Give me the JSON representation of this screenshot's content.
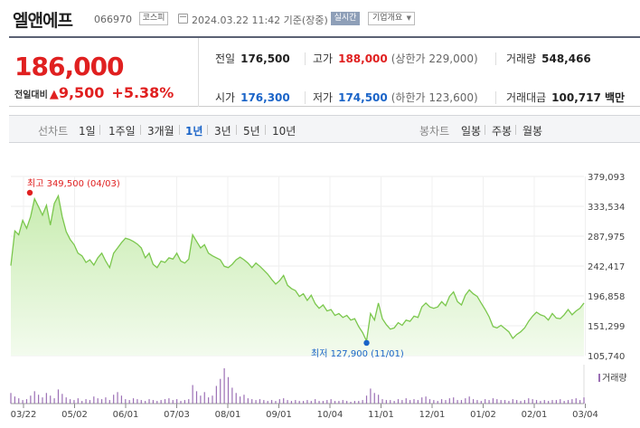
{
  "header": {
    "name": "엘앤에프",
    "code": "066970",
    "market": "코스피",
    "timestamp": "2024.03.22 11:42 기준(장중)",
    "realtime": "실시간",
    "company_info": "기업개요"
  },
  "summary": {
    "price": "186,000",
    "change_label": "전일대비",
    "change_arrow": "▲",
    "change": "9,500",
    "change_pct": "+5.38%",
    "prev_label": "전일",
    "prev": "176,500",
    "high_label": "고가",
    "high": "188,000",
    "upper_limit": "(상한가 229,000)",
    "volume_label": "거래량",
    "volume": "548,466",
    "open_label": "시가",
    "open": "176,300",
    "low_label": "저가",
    "low": "174,500",
    "lower_limit": "(하한가 123,600)",
    "amount_label": "거래대금",
    "amount": "100,717 백만"
  },
  "periods": {
    "line_label": "선차트",
    "line_tabs": [
      "1일",
      "1주일",
      "3개월",
      "1년",
      "3년",
      "5년",
      "10년"
    ],
    "active": "1년",
    "candle_label": "봉차트",
    "candle_tabs": [
      "일봉",
      "주봉",
      "월봉"
    ]
  },
  "chart_data": {
    "type": "area",
    "y_ticks": [
      "379,093",
      "333,534",
      "287,975",
      "242,417",
      "196,858",
      "151,299",
      "105,740"
    ],
    "ylim": [
      105740,
      379093
    ],
    "x_ticks": [
      "03/22",
      "05/02",
      "06/01",
      "07/03",
      "08/01",
      "09/01",
      "10/04",
      "11/01",
      "12/01",
      "01/02",
      "02/01",
      "03/04"
    ],
    "high_label": "최고 349,500 (04/03)",
    "low_label": "최저 127,900 (11/01)",
    "volume_legend": "거래량",
    "colors": {
      "line": "#7bc74d",
      "fill_top": "#c8ecb0",
      "fill_bottom": "#f3fbee",
      "volume": "#9b6fb5",
      "high_marker": "#e02020",
      "low_marker": "#1a64c8"
    },
    "series": [
      {
        "values": [
          243000,
          296000,
          290000,
          312000,
          300000,
          318000,
          345000,
          333000,
          320000,
          335000,
          305000,
          338000,
          349500,
          318000,
          295000,
          283000,
          275000,
          262000,
          258000,
          248000,
          252000,
          244000,
          255000,
          262000,
          250000,
          240000,
          262000,
          270000,
          278000,
          285000,
          283000,
          280000,
          276000,
          270000,
          255000,
          262000,
          245000,
          240000,
          250000,
          248000,
          255000,
          253000,
          262000,
          250000,
          247000,
          253000,
          290000,
          280000,
          270000,
          275000,
          262000,
          258000,
          255000,
          252000,
          242000,
          240000,
          245000,
          252000,
          256000,
          252000,
          247000,
          240000,
          247000,
          242000,
          236000,
          230000,
          222000,
          215000,
          220000,
          228000,
          213000,
          208000,
          205000,
          196000,
          200000,
          190000,
          198000,
          185000,
          178000,
          183000,
          174000,
          176000,
          167000,
          170000,
          164000,
          167000,
          160000,
          162000,
          150000,
          141000,
          127900,
          170000,
          160000,
          186000,
          162000,
          153000,
          146000,
          148000,
          156000,
          152000,
          160000,
          158000,
          166000,
          164000,
          180000,
          186000,
          180000,
          178000,
          180000,
          188000,
          182000,
          196000,
          203000,
          188000,
          183000,
          198000,
          206000,
          200000,
          196000,
          186000,
          176000,
          165000,
          150000,
          148000,
          152000,
          147000,
          142000,
          132000,
          138000,
          142000,
          148000,
          158000,
          166000,
          172000,
          168000,
          166000,
          160000,
          170000,
          163000,
          162000,
          168000,
          176000,
          168000,
          174000,
          178000,
          186000
        ]
      }
    ],
    "high_index": 12,
    "low_index": 90,
    "volume": [
      12,
      8,
      6,
      4,
      5,
      9,
      14,
      10,
      7,
      12,
      9,
      6,
      16,
      11,
      7,
      5,
      4,
      6,
      3,
      5,
      4,
      8,
      6,
      5,
      7,
      4,
      10,
      13,
      9,
      5,
      4,
      6,
      5,
      4,
      3,
      5,
      4,
      3,
      4,
      5,
      6,
      4,
      5,
      3,
      4,
      5,
      21,
      14,
      9,
      13,
      7,
      9,
      20,
      28,
      40,
      30,
      18,
      12,
      8,
      10,
      6,
      5,
      4,
      5,
      4,
      3,
      4,
      3,
      5,
      6,
      4,
      3,
      4,
      3,
      3,
      4,
      3,
      5,
      3,
      3,
      4,
      5,
      3,
      3,
      4,
      3,
      2,
      3,
      3,
      4,
      9,
      17,
      12,
      10,
      5,
      4,
      4,
      3,
      5,
      4,
      6,
      4,
      5,
      4,
      7,
      8,
      5,
      4,
      3,
      5,
      4,
      6,
      7,
      4,
      4,
      6,
      8,
      5,
      4,
      3,
      5,
      4,
      6,
      5,
      4,
      4,
      3,
      5,
      4,
      3,
      4,
      6,
      5,
      4,
      3,
      4,
      3,
      4,
      4,
      5,
      3,
      4,
      5,
      6,
      4,
      7
    ]
  }
}
